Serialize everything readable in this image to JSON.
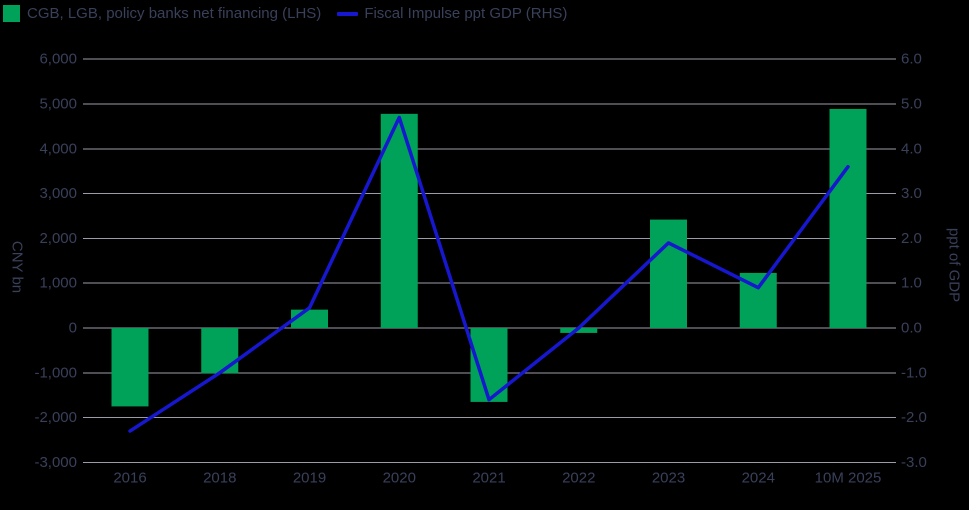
{
  "legend": {
    "bars_label": "CGB, LGB, policy banks net financing (LHS)",
    "line_label": "Fiscal Impulse ppt GDP (RHS)"
  },
  "colors": {
    "background": "#000000",
    "bar": "#00A159",
    "line": "#1717CF",
    "grid": "#9C9CA9",
    "text": "#39405A"
  },
  "chart_data": {
    "type": "bar",
    "subtype": "bar+line combo, dual axis",
    "categories": [
      "2016",
      "2018",
      "2019",
      "2020",
      "2021",
      "2022",
      "2023",
      "2024",
      "10M 2025"
    ],
    "series": [
      {
        "name": "CGB, LGB, policy banks net financing (LHS)",
        "type": "bar",
        "axis": "left",
        "values": [
          -1750,
          -1010,
          410,
          4780,
          -1650,
          -110,
          2420,
          1230,
          4890
        ]
      },
      {
        "name": "Fiscal Impulse ppt GDP (RHS)",
        "type": "line",
        "axis": "right",
        "values": [
          -2.3,
          -1.0,
          0.45,
          4.7,
          -1.6,
          0.0,
          1.9,
          0.9,
          3.6
        ]
      }
    ],
    "left_axis": {
      "title": "CNY bn",
      "min": -3000,
      "max": 6000,
      "tick_step": 1000
    },
    "right_axis": {
      "title": "ppt of GDP",
      "min": -3.0,
      "max": 6.0,
      "tick_step": 1.0
    },
    "grid": true,
    "legend_position": "top-left",
    "title": "",
    "xlabel": ""
  }
}
